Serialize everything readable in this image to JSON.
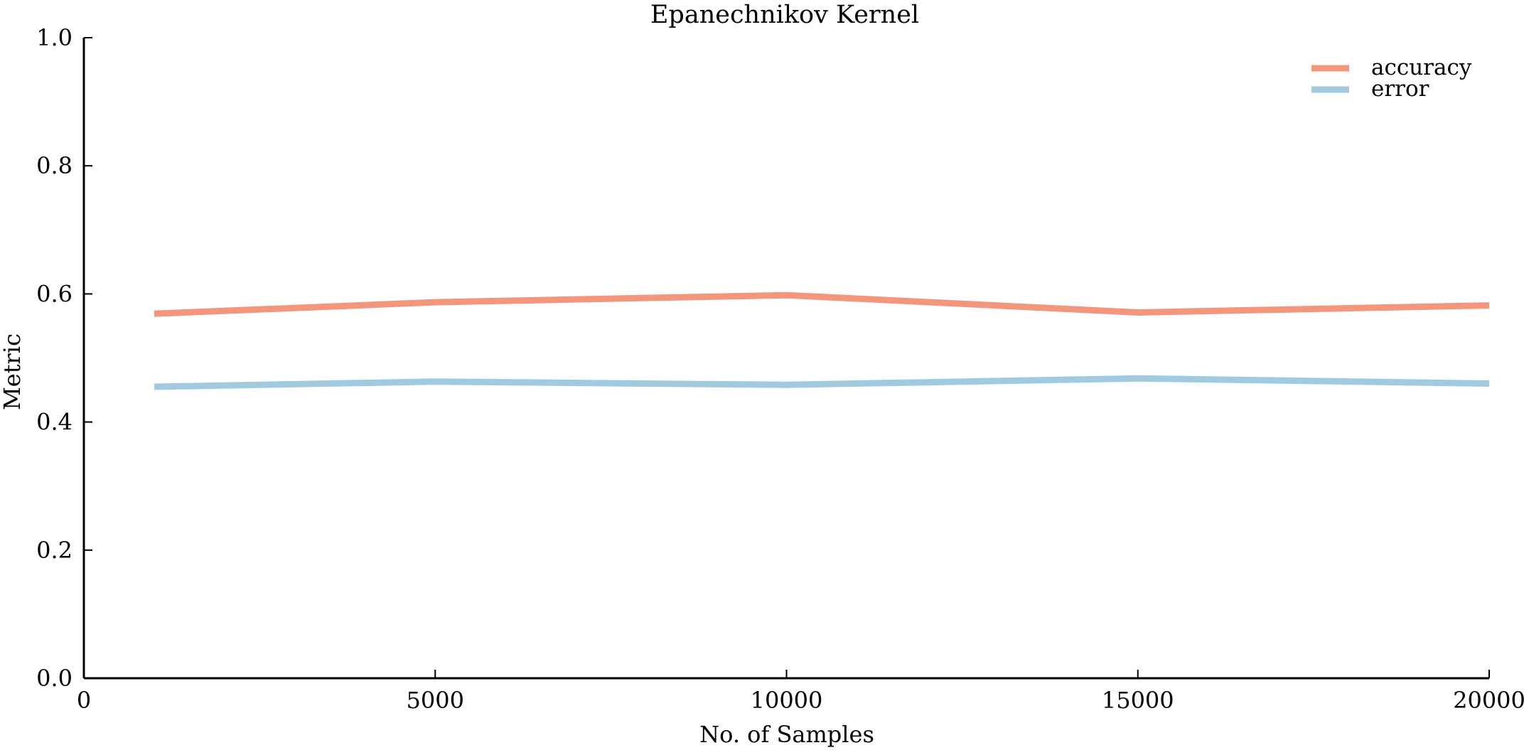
{
  "chart_data": {
    "type": "line",
    "title": "Epanechnikov Kernel",
    "xlabel": "No. of Samples",
    "ylabel": "Metric",
    "xlim": [
      0,
      20000
    ],
    "ylim": [
      0.0,
      1.0
    ],
    "x_ticks": [
      0,
      5000,
      10000,
      15000,
      20000
    ],
    "x_tick_labels": [
      "0",
      "5000",
      "10000",
      "15000",
      "20000"
    ],
    "y_ticks": [
      0.0,
      0.2,
      0.4,
      0.6,
      0.8,
      1.0
    ],
    "y_tick_labels": [
      "0.0",
      "0.2",
      "0.4",
      "0.6",
      "0.8",
      "1.0"
    ],
    "grid": false,
    "legend_position": "top-right",
    "x": [
      1000,
      5000,
      10000,
      15000,
      20000
    ],
    "series": [
      {
        "name": "accuracy",
        "color": "#f4967b",
        "values": [
          0.569,
          0.587,
          0.598,
          0.571,
          0.582
        ]
      },
      {
        "name": "error",
        "color": "#a1cae0",
        "values": [
          0.455,
          0.463,
          0.458,
          0.468,
          0.46
        ]
      }
    ]
  }
}
